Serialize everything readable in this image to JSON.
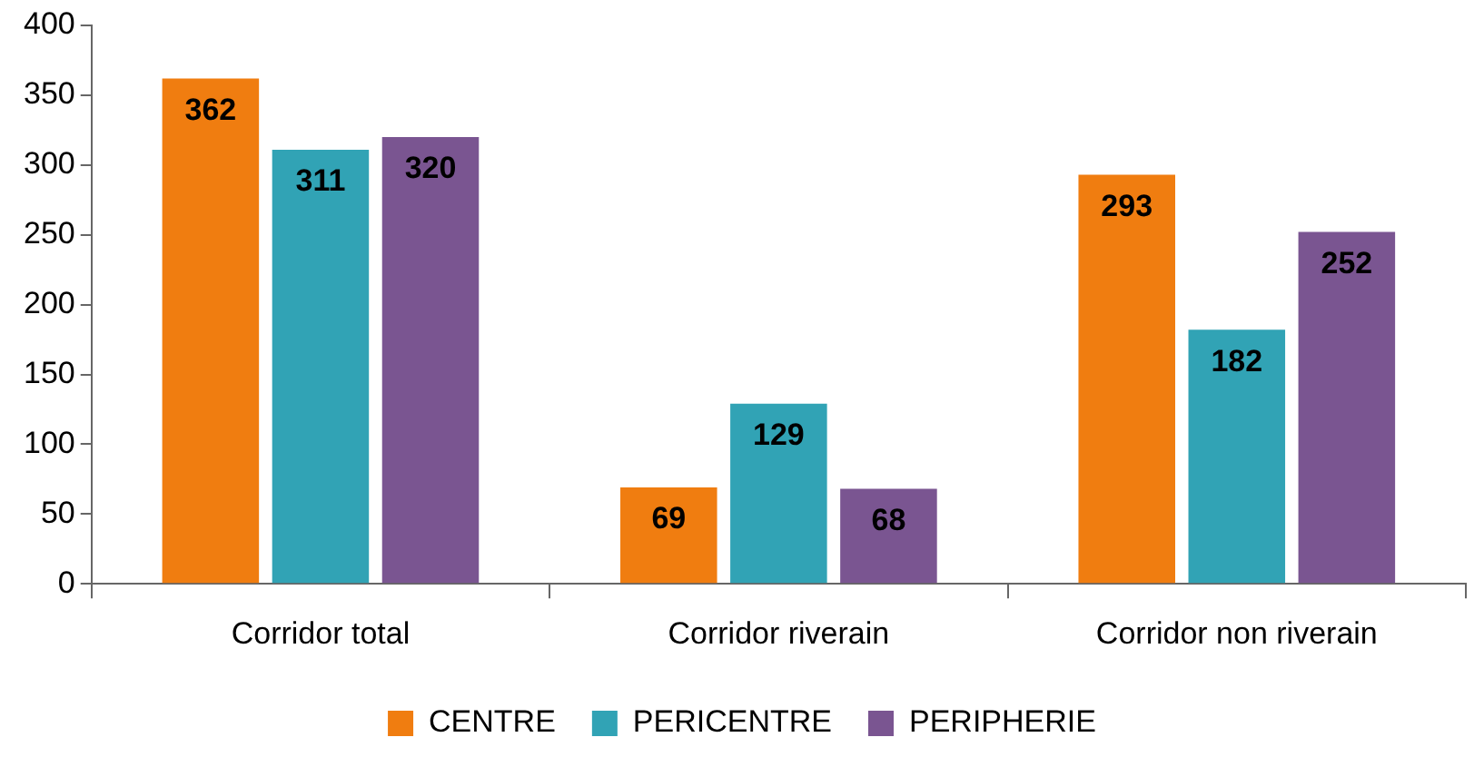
{
  "chart_data": {
    "type": "bar",
    "categories": [
      "Corridor total",
      "Corridor riverain",
      "Corridor non riverain"
    ],
    "series": [
      {
        "name": "CENTRE",
        "color": "#f07d10",
        "values": [
          362,
          69,
          293
        ]
      },
      {
        "name": "PERICENTRE",
        "color": "#31a3b5",
        "values": [
          311,
          129,
          182
        ]
      },
      {
        "name": "PERIPHERIE",
        "color": "#7a5591",
        "values": [
          320,
          68,
          252
        ]
      }
    ],
    "ylim": [
      0,
      400
    ],
    "yticks": [
      0,
      50,
      100,
      150,
      200,
      250,
      300,
      350,
      400
    ],
    "grid": false,
    "legend": "bottom",
    "data_labels": true
  }
}
